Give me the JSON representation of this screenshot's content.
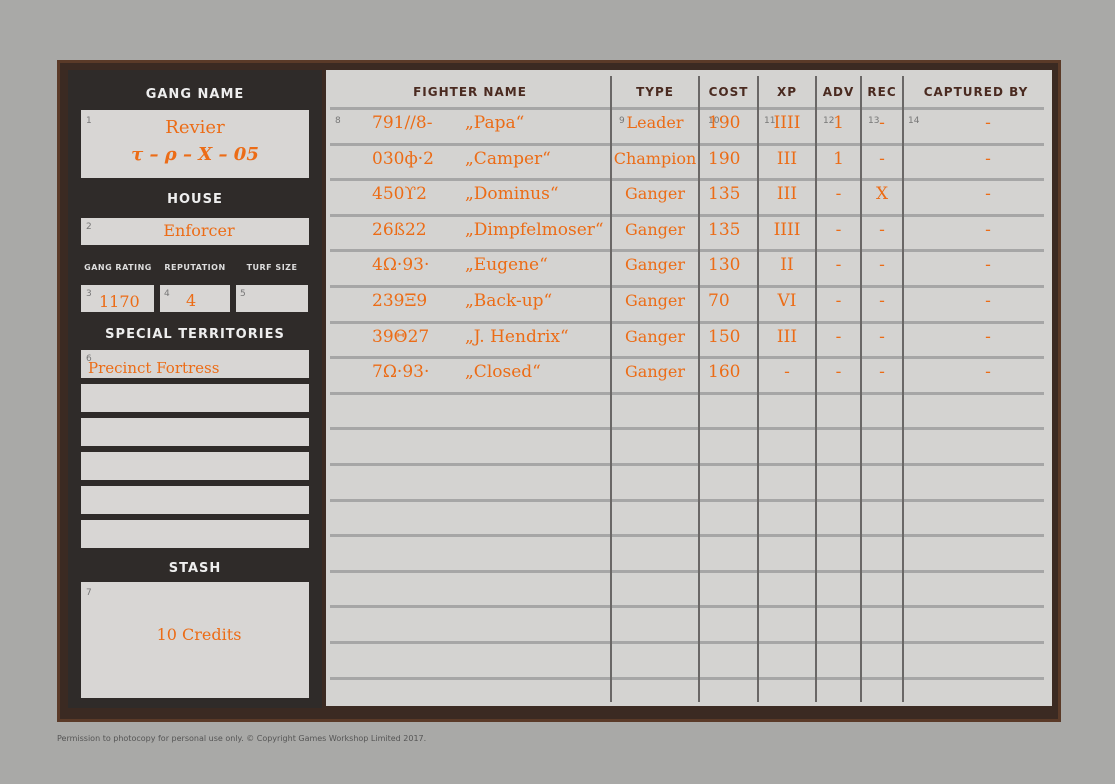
{
  "sidebar": {
    "gang_name": {
      "heading": "GANG NAME",
      "number": "1",
      "lines": [
        "Revier",
        "τ – ρ – X – 05"
      ]
    },
    "house": {
      "heading": "HOUSE",
      "number": "2",
      "value": "Enforcer"
    },
    "stats": [
      {
        "heading": "GANG RATING",
        "number": "3",
        "value": "1170"
      },
      {
        "heading": "REPUTATION",
        "number": "4",
        "value": "4"
      },
      {
        "heading": "TURF SIZE",
        "number": "5"
      }
    ],
    "territories": {
      "heading": "SPECIAL TERRITORIES",
      "number": "6",
      "value": "Precinct Fortress"
    },
    "stash": {
      "heading": "STASH",
      "number": "7",
      "value": "10 Credits"
    }
  },
  "table": {
    "headers": [
      "FIGHTER NAME",
      "TYPE",
      "COST",
      "XP",
      "ADV",
      "REC",
      "CAPTURED BY"
    ],
    "column_numbers": [
      "8",
      "9",
      "10",
      "11",
      "12",
      "13",
      "14"
    ],
    "rows": [
      [
        "791//8-",
        "„Papa“",
        "Leader",
        "190",
        "IIII",
        "1",
        "-",
        "-"
      ],
      [
        "030ф·2",
        "„Camper“",
        "Champion",
        "190",
        "III",
        "1",
        "-",
        "-"
      ],
      [
        "450ϒ2",
        "„Dominus“",
        "Ganger",
        "135",
        "III",
        "-",
        "X",
        "-"
      ],
      [
        "26ß22",
        "„Dimpfelmoser“",
        "Ganger",
        "135",
        "IIII",
        "-",
        "-",
        "-"
      ],
      [
        "4Ω·93·",
        "„Eugene“",
        "Ganger",
        "130",
        "II",
        "-",
        "-",
        "-"
      ],
      [
        "239Ξ9",
        "„Back-up“",
        "Ganger",
        "70",
        "VI",
        "-",
        "-",
        "-"
      ],
      [
        "39Θ27",
        "„J. Hendrix“",
        "Ganger",
        "150",
        "III",
        "-",
        "-",
        "-"
      ],
      [
        "7Ω·93·",
        "„Closed“",
        "Ganger",
        "160",
        "-",
        "-",
        "-",
        "-"
      ]
    ]
  },
  "footer": "Permission to photocopy for personal use only. © Copyright Games Workshop Limited 2017."
}
